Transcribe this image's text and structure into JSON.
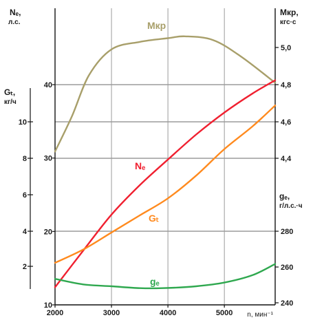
{
  "chart_data": {
    "type": "line",
    "x_label": "n, мин⁻¹",
    "x_ticks": [
      "2000",
      "3000",
      "4000",
      "5000"
    ],
    "x_range": [
      2000,
      5900
    ],
    "axes": {
      "Ne": {
        "title_lines": [
          "Nₑ,",
          "л.с."
        ],
        "ticks": [
          "10",
          "20",
          "30",
          "40"
        ],
        "range": [
          10,
          40
        ],
        "side": "left"
      },
      "Gt": {
        "title_lines": [
          "Gₜ,",
          "кг/ч"
        ],
        "ticks": [
          "2",
          "4",
          "6",
          "8",
          "10"
        ],
        "range": [
          0.2,
          10
        ],
        "side": "left-inner"
      },
      "Mkr": {
        "title_lines": [
          "Mкр,",
          "кгс·с"
        ],
        "ticks": [
          "4,4",
          "4,6",
          "4,8",
          "5,0"
        ],
        "range": [
          4.2,
          5.0
        ],
        "side": "right"
      },
      "ge": {
        "title_lines": [
          "gₑ,",
          "г/л.с.·ч"
        ],
        "ticks": [
          "240",
          "260",
          "280"
        ],
        "range": [
          240,
          300
        ],
        "side": "right"
      }
    },
    "series": [
      {
        "name": "Mкр",
        "axis": "Mkr",
        "color": "#a89f6a",
        "x": [
          2000,
          2300,
          2600,
          3000,
          3500,
          4000,
          4300,
          4800,
          5300,
          5900
        ],
        "y": [
          4.44,
          4.63,
          4.85,
          4.99,
          5.03,
          5.05,
          5.06,
          5.04,
          4.95,
          4.81
        ]
      },
      {
        "name": "Nₑ",
        "axis": "Ne",
        "color": "#f02030",
        "x": [
          2000,
          2500,
          3000,
          3500,
          4000,
          4500,
          5000,
          5500,
          5900
        ],
        "y": [
          12.4,
          17.4,
          22.3,
          26.3,
          29.8,
          33.2,
          36.2,
          38.8,
          40.6
        ]
      },
      {
        "name": "Gₜ",
        "axis": "Gt",
        "color": "#ff8a1e",
        "x": [
          2000,
          2500,
          3000,
          3500,
          4000,
          4500,
          5000,
          5500,
          5900
        ],
        "y": [
          2.2,
          2.9,
          3.8,
          4.7,
          5.6,
          6.8,
          8.2,
          9.4,
          10.5
        ]
      },
      {
        "name": "gₑ",
        "axis": "ge",
        "color": "#2fa84f",
        "x": [
          2000,
          2500,
          3000,
          3500,
          3900,
          4500,
          5000,
          5500,
          5900
        ],
        "y": [
          254,
          251,
          250,
          249,
          249,
          250,
          252,
          256,
          262
        ]
      }
    ],
    "grid": {
      "vertical": true,
      "horizontal": true
    },
    "colors": {
      "axis": "#111111",
      "grid": "#777777"
    }
  }
}
